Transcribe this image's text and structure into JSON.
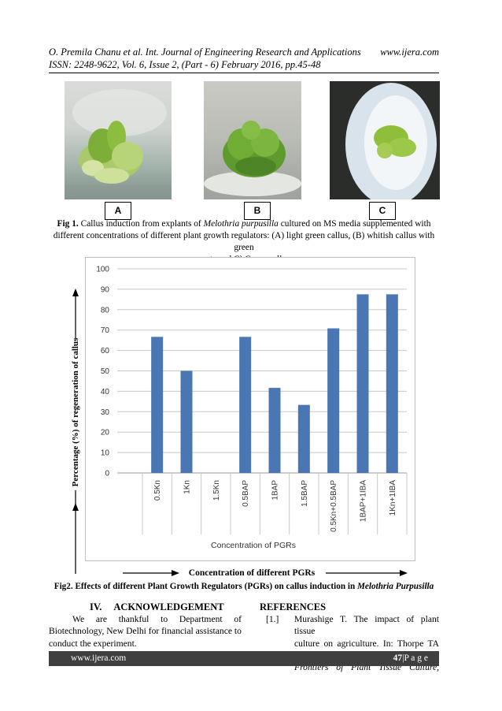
{
  "header": {
    "line1_left": "O. Premila Chanu et al. Int. Journal of Engineering Research and Applications",
    "line1_right": "www.ijera.com",
    "line2": "ISSN: 2248-9622, Vol. 6, Issue 2, (Part - 6) February 2016, pp.45-48"
  },
  "figure1": {
    "panels": [
      "A",
      "B",
      "C"
    ],
    "caption_bold": "Fig 1.",
    "caption_p1": " Callus induction from explants of ",
    "caption_species": "Melothria purpusilla",
    "caption_p2": " cultured on MS media supplemented with",
    "caption_line2": "different concentrations of different plant growth regulators: (A) light green callus, (B) whitish callus with green",
    "caption_line3": "spots and C) Green callus"
  },
  "chart_data": {
    "type": "bar",
    "categories": [
      "0.5Kn",
      "1Kn",
      "1.5Kn",
      "0.5BAP",
      "1BAP",
      "1.5BAP",
      "0.5Kn+0.5BAP",
      "1BAP+1IBA",
      "1Kn+1IBA"
    ],
    "values": [
      66.67,
      50,
      0,
      66.67,
      41.67,
      33.33,
      70.83,
      87.5,
      87.5
    ],
    "yticks": [
      0,
      10,
      20,
      30,
      40,
      50,
      60,
      70,
      80,
      90,
      100
    ],
    "ylim": [
      0,
      100
    ],
    "xlabel": "Concentration of PGRs",
    "ylabel": "Percentage (%) of regeneration of callus",
    "outer_xlabel": "Concentration of different PGRs",
    "bar_color": "#4a77b4",
    "grid": true
  },
  "figure2": {
    "caption_main": "Fig2. Effects of different Plant Growth Regulators (PGRs) on callus induction in ",
    "caption_species": "Melothria Purpusilla"
  },
  "ack": {
    "heading": "IV.     ACKNOWLEDGEMENT",
    "line1": "We are thankful to Department of",
    "line2": "Biotechnology, New Delhi for financial assistance to",
    "line3": "conduct the experiment."
  },
  "refs": {
    "heading": "REFERENCES",
    "num": "[1.]",
    "line1": "Murashige T. The impact of plant tissue",
    "line2": "culture on agriculture. In: Thorpe TA (ed).",
    "line3": "Frontiers of Plant Tissue Culture,"
  },
  "footer": {
    "left": "www.ijera.com",
    "page": "47",
    "page_suffix": "|P a g e"
  }
}
